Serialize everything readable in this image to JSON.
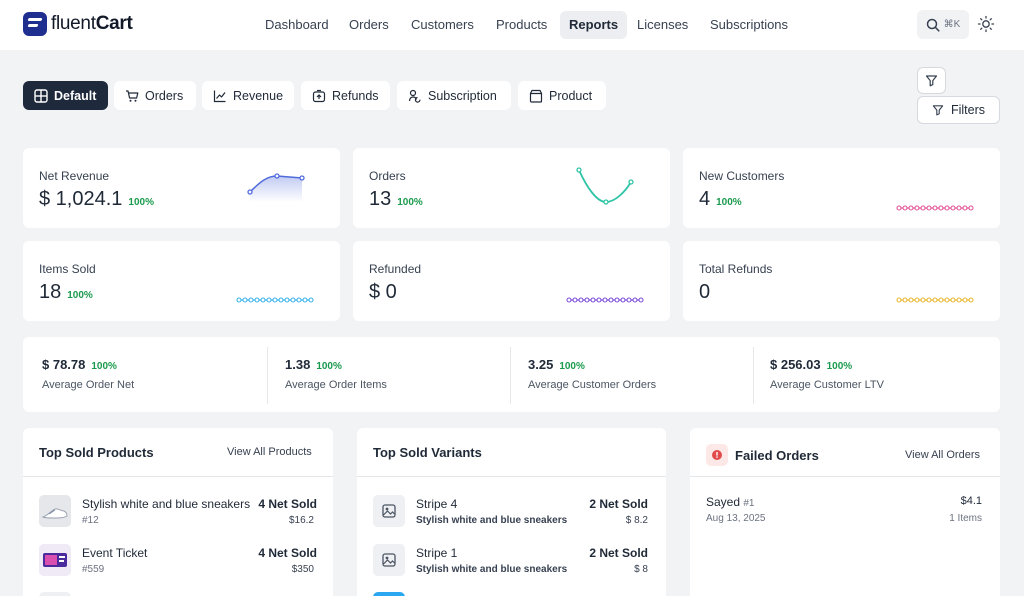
{
  "app": {
    "logo_word1": "fluent",
    "logo_word2": "Cart"
  },
  "nav": {
    "items": [
      {
        "label": "Dashboard"
      },
      {
        "label": "Orders"
      },
      {
        "label": "Customers"
      },
      {
        "label": "Products"
      },
      {
        "label": "Reports"
      },
      {
        "label": "Licenses"
      },
      {
        "label": "Subscriptions"
      }
    ],
    "active": "Reports",
    "search_shortcut": "⌘K"
  },
  "tabs": [
    {
      "label": "Default",
      "icon": "grid-icon"
    },
    {
      "label": "Orders",
      "icon": "cart-icon"
    },
    {
      "label": "Revenue",
      "icon": "trend-icon"
    },
    {
      "label": "Refunds",
      "icon": "refund-icon"
    },
    {
      "label": "Subscription",
      "icon": "subscription-icon"
    },
    {
      "label": "Product",
      "icon": "box-icon"
    }
  ],
  "filters": {
    "label": "Filters"
  },
  "stats": [
    {
      "label": "Net Revenue",
      "value": "$ 1,024.1",
      "pct": "100%",
      "color": "#4f6bdc"
    },
    {
      "label": "Orders",
      "value": "13",
      "pct": "100%",
      "color": "#2ec4a6"
    },
    {
      "label": "New Customers",
      "value": "4",
      "pct": "100%",
      "color": "#e2559a"
    },
    {
      "label": "Items Sold",
      "value": "18",
      "pct": "100%",
      "color": "#3bb5e8"
    },
    {
      "label": "Refunded",
      "value": "$ 0",
      "pct": "",
      "color": "#7e4fd8"
    },
    {
      "label": "Total Refunds",
      "value": "0",
      "pct": "",
      "color": "#e8b832"
    }
  ],
  "summary": [
    {
      "value": "$  78.78",
      "pct": "100%",
      "label": "Average Order Net"
    },
    {
      "value": "1.38",
      "pct": "100%",
      "label": "Average Order Items"
    },
    {
      "value": "3.25",
      "pct": "100%",
      "label": "Average Customer Orders"
    },
    {
      "value": "$  256.03",
      "pct": "100%",
      "label": "Average Customer LTV"
    }
  ],
  "top_products": {
    "title": "Top Sold Products",
    "link": "View All Products",
    "rows": [
      {
        "name": "Stylish white and blue sneakers",
        "sub": "#12",
        "qty": "4 Net Sold",
        "price": "$16.2"
      },
      {
        "name": "Event Ticket",
        "sub": "#559",
        "qty": "4 Net Sold",
        "price": "$350"
      }
    ]
  },
  "top_variants": {
    "title": "Top Sold Variants",
    "rows": [
      {
        "name": "Stripe 4",
        "sub": "Stylish white and blue sneakers",
        "qty": "2 Net Sold",
        "price": "$ 8.2"
      },
      {
        "name": "Stripe 1",
        "sub": "Stylish white and blue sneakers",
        "qty": "2 Net Sold",
        "price": "$ 8"
      }
    ]
  },
  "failed_orders": {
    "title": "Failed Orders",
    "link": "View All Orders",
    "rows": [
      {
        "name": "Sayed",
        "id": "#1",
        "date": "Aug 13, 2025",
        "amount": "$4.1",
        "items": "1 Items"
      }
    ]
  }
}
